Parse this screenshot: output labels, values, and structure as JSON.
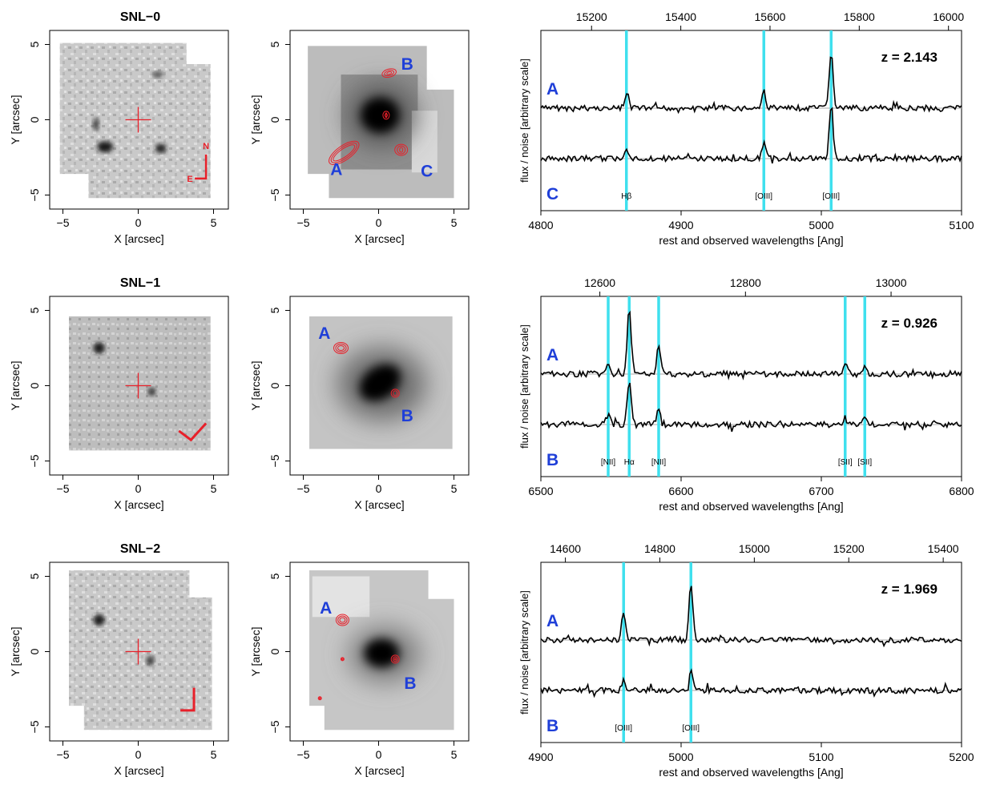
{
  "axis_labels": {
    "x_img": "X [arcsec]",
    "y_img": "Y [arcsec]",
    "spec_x": "rest and observed wavelengths [Ang]",
    "spec_y": "flux / noise [arbitrary scale]"
  },
  "colors": {
    "contour_red": "#e8202a",
    "label_blue": "#1f3fd8",
    "line_cyan": "#3fe0ee",
    "spectrum": "#000000",
    "baseline": "#aaaaaa"
  },
  "rows": [
    {
      "title": "SNL−0",
      "compass": {
        "n": "N",
        "e": "E",
        "mark": "arrows"
      },
      "image_labels": [
        {
          "text": "A",
          "x": -2.8,
          "y": -3.2
        },
        {
          "text": "B",
          "x": 1.9,
          "y": 3.8
        },
        {
          "text": "C",
          "x": 3.2,
          "y": -3.3
        }
      ],
      "spectrum": {
        "redshift_label": "z = 2.143",
        "upper": "A",
        "lower": "C",
        "rest_range": [
          4800,
          5100
        ],
        "rest_ticks": [
          4800,
          4900,
          5000,
          5100
        ],
        "obs_ticks": [
          15200,
          15400,
          15600,
          15800,
          16000
        ],
        "z": 2.143,
        "lines": [
          {
            "rest": 4861,
            "label": "Hβ",
            "amp_top": 0.32,
            "amp_bot": 0.3
          },
          {
            "rest": 4959,
            "label": "[OIII]",
            "amp_top": 0.42,
            "amp_bot": 0.38
          },
          {
            "rest": 5007,
            "label": "[OIII]",
            "amp_top": 1.4,
            "amp_bot": 1.35
          }
        ]
      }
    },
    {
      "title": "SNL−1",
      "compass": {
        "n": "",
        "e": "",
        "mark": "check"
      },
      "image_labels": [
        {
          "text": "A",
          "x": -3.6,
          "y": 3.6
        },
        {
          "text": "B",
          "x": 1.9,
          "y": -1.9
        }
      ],
      "spectrum": {
        "redshift_label": "z = 0.926",
        "upper": "A",
        "lower": "B",
        "rest_range": [
          6500,
          6800
        ],
        "rest_ticks": [
          6500,
          6600,
          6700,
          6800
        ],
        "obs_ticks": [
          12600,
          12800,
          13000
        ],
        "z": 0.926,
        "lines": [
          {
            "rest": 6548,
            "label": "[NII]",
            "amp_top": 0.3,
            "amp_bot": 0.25
          },
          {
            "rest": 6563,
            "label": "Hα",
            "amp_top": 1.6,
            "amp_bot": 1.05
          },
          {
            "rest": 6584,
            "label": "[NII]",
            "amp_top": 0.7,
            "amp_bot": 0.4
          },
          {
            "rest": 6717,
            "label": "[SII]",
            "amp_top": 0.25,
            "amp_bot": 0.2
          },
          {
            "rest": 6731,
            "label": "[SII]",
            "amp_top": 0.25,
            "amp_bot": 0.2
          }
        ]
      }
    },
    {
      "title": "SNL−2",
      "compass": {
        "n": "",
        "e": "",
        "mark": "corner"
      },
      "image_labels": [
        {
          "text": "A",
          "x": -3.5,
          "y": 3.0
        },
        {
          "text": "B",
          "x": 2.1,
          "y": -2.0
        }
      ],
      "spectrum": {
        "redshift_label": "z = 1.969",
        "upper": "A",
        "lower": "B",
        "rest_range": [
          4900,
          5200
        ],
        "rest_ticks": [
          4900,
          5000,
          5100,
          5200
        ],
        "obs_ticks": [
          14600,
          14800,
          15000,
          15200,
          15400
        ],
        "z": 1.969,
        "lines": [
          {
            "rest": 4959,
            "label": "[OIII]",
            "amp_top": 0.7,
            "amp_bot": 0.25
          },
          {
            "rest": 5007,
            "label": "[OIII]",
            "amp_top": 1.4,
            "amp_bot": 0.45
          }
        ]
      }
    }
  ]
}
